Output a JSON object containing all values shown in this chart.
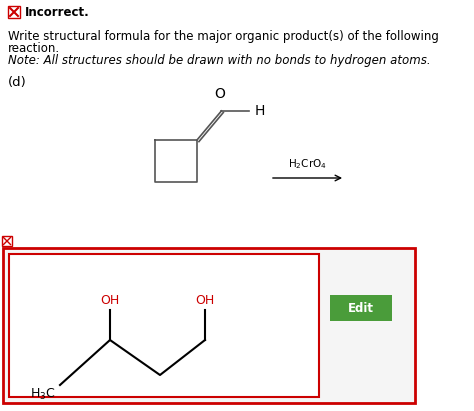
{
  "bg_color": "#ffffff",
  "incorrect_text": "Incorrect.",
  "incorrect_icon_color": "#cc0000",
  "body_text_line1": "Write structural formula for the major organic product(s) of the following",
  "body_text_line2": "reaction.",
  "note_text": "Note: All structures should be drawn with no bonds to hydrogen atoms.",
  "label_d": "(d)",
  "answer_box_border": "#cc0000",
  "answer_box_inner_border": "#cc0000",
  "edit_btn_color": "#4a9c3a",
  "edit_btn_text": "Edit",
  "edit_btn_text_color": "#ffffff",
  "mol_oh_color": "#cc0000",
  "font_size_body": 8.5,
  "font_size_label": 9.5,
  "font_size_mol": 9
}
